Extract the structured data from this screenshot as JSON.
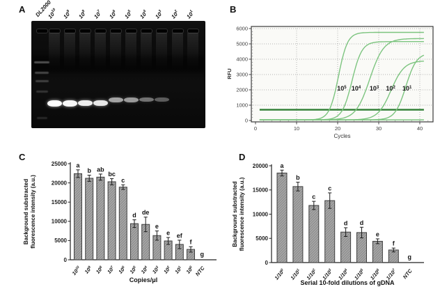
{
  "figure": {
    "panels": {
      "A": {
        "label": "A",
        "type": "gel-electrophoresis"
      },
      "B": {
        "label": "B"
      },
      "C": {
        "label": "C"
      },
      "D": {
        "label": "D"
      }
    }
  },
  "gel": {
    "lanes": [
      {
        "label": "DL2000",
        "is_ladder": true,
        "band": 0
      },
      {
        "label": "10^10",
        "band": 1.0
      },
      {
        "label": "10^9",
        "band": 0.97
      },
      {
        "label": "10^8",
        "band": 0.93
      },
      {
        "label": "10^7",
        "band": 0.9
      },
      {
        "label": "10^6",
        "band": 0.62
      },
      {
        "label": "10^5",
        "band": 0.58
      },
      {
        "label": "10^4",
        "band": 0.42
      },
      {
        "label": "10^3",
        "band": 0.33
      },
      {
        "label": "10^2",
        "band": 0
      },
      {
        "label": "10^1",
        "band": 0
      }
    ],
    "ladder_bands": [
      {
        "y": 58,
        "w": 22,
        "o": 0.5
      },
      {
        "y": 73,
        "w": 20,
        "o": 0.42
      },
      {
        "y": 85,
        "w": 19,
        "o": 0.36
      },
      {
        "y": 100,
        "w": 17,
        "o": 0.28
      },
      {
        "y": 138,
        "w": 15,
        "o": 0.2
      }
    ]
  },
  "chart_data": [
    {
      "panel": "B",
      "type": "line",
      "title": "",
      "xlabel": "Cycles",
      "ylabel": "RFU",
      "xlim": [
        0,
        43
      ],
      "ylim": [
        0,
        6000
      ],
      "xticks": [
        0,
        10,
        20,
        30,
        40
      ],
      "yticks": [
        0,
        1000,
        2000,
        3000,
        4000,
        5000,
        6000
      ],
      "grid": true,
      "plot_bg": "#fafaf7",
      "curve_color": "#7cc47f",
      "threshold_color": "#2e7d32",
      "threshold_rfu": 700,
      "baseline_rfu": 40,
      "series_label_y": 1950,
      "series": [
        {
          "name": "10^5",
          "midpoint": 20.2,
          "slope": 1.1,
          "plateau": 5750,
          "label_x": 21.0
        },
        {
          "name": "10^4",
          "midpoint": 23.5,
          "slope": 1.2,
          "plateau": 5150,
          "label_x": 24.5
        },
        {
          "name": "10^3",
          "midpoint": 27.8,
          "slope": 1.7,
          "plateau": 5350,
          "label_x": 28.9
        },
        {
          "name": "10^2",
          "midpoint": 33.0,
          "slope": 1.6,
          "plateau": 3900,
          "label_x": 32.9
        },
        {
          "name": "10^1",
          "midpoint": 36.6,
          "slope": 1.3,
          "plateau": 4400,
          "label_x": 36.9
        }
      ]
    },
    {
      "panel": "C",
      "type": "bar",
      "categories": [
        "10^10",
        "10^9",
        "10^8",
        "10^7",
        "10^6",
        "10^5",
        "10^4",
        "10^3",
        "10^2",
        "10^1",
        "10^0",
        "NTC"
      ],
      "values": [
        22400,
        21200,
        21500,
        20300,
        18900,
        9400,
        9200,
        6300,
        4900,
        4000,
        2700,
        0
      ],
      "errors": [
        1000,
        800,
        800,
        800,
        600,
        1000,
        1900,
        1200,
        900,
        1100,
        700,
        0
      ],
      "sig_letters": [
        "a",
        "b",
        "ab",
        "bc",
        "c",
        "d",
        "de",
        "e",
        "e",
        "ef",
        "f",
        "g"
      ],
      "xlabel": "Copies/μl",
      "ylabel_lines": [
        "Background substracted",
        "fluorescence intensity (a.u.)"
      ],
      "ylim": [
        0,
        25000
      ],
      "yticks": [
        0,
        5000,
        10000,
        15000,
        20000,
        25000
      ],
      "grid": false,
      "bar_color": "#a6a6a6",
      "bar_hatch_color": "#747474",
      "bar_border": "#3f3f3f"
    },
    {
      "panel": "D",
      "type": "bar",
      "categories": [
        "1/10^0",
        "1/10^1",
        "1/10^2",
        "1/10^3",
        "1/10^4",
        "1/10^5",
        "1/10^6",
        "1/10^7",
        "NTC"
      ],
      "values": [
        18500,
        15700,
        11800,
        12800,
        6300,
        6200,
        4400,
        2600,
        0
      ],
      "errors": [
        600,
        900,
        850,
        1600,
        900,
        1100,
        500,
        400,
        0
      ],
      "sig_letters": [
        "a",
        "b",
        "c",
        "c",
        "d",
        "d",
        "e",
        "f",
        "g"
      ],
      "xlabel": "Serial 10-fold dilutions of gDNA",
      "ylabel_lines": [
        "Background substracted",
        "fluorescence intensity (a.u.)"
      ],
      "ylim": [
        0,
        20000
      ],
      "yticks": [
        0,
        5000,
        10000,
        15000,
        20000
      ],
      "grid": false,
      "bar_color": "#a6a6a6",
      "bar_hatch_color": "#747474",
      "bar_border": "#3f3f3f"
    }
  ]
}
